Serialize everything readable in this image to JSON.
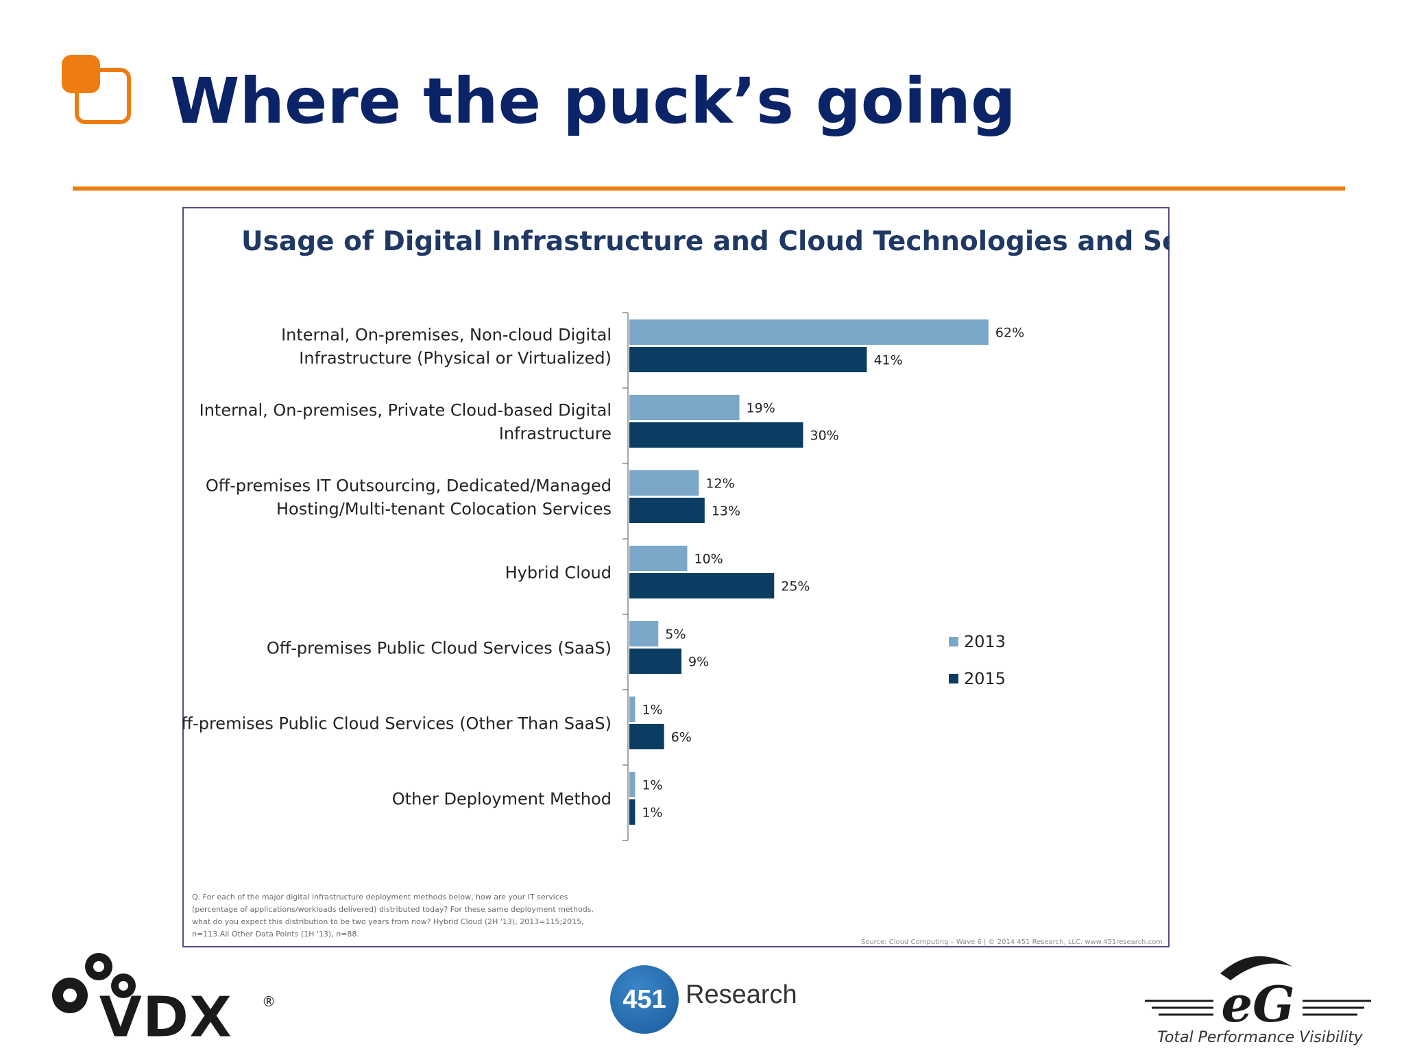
{
  "slide": {
    "title": "Where the puck’s going",
    "accent_color": "#ee7d11",
    "title_color": "#0a2467",
    "icon": "rounded-squares-icon"
  },
  "chart_data": {
    "type": "bar",
    "orientation": "horizontal",
    "title": "Usage of Digital Infrastructure and Cloud Technologies and Services",
    "categories": [
      [
        "Internal, On-premises, Non-cloud Digital",
        "Infrastructure (Physical or Virtualized)"
      ],
      [
        "Internal, On-premises, Private Cloud-based Digital",
        "Infrastructure"
      ],
      [
        "Off-premises IT Outsourcing, Dedicated/Managed",
        "Hosting/Multi-tenant Colocation Services"
      ],
      [
        "Hybrid Cloud"
      ],
      [
        "Off-premises Public Cloud Services (SaaS)"
      ],
      [
        "Off-premises Public Cloud Services (Other Than SaaS)"
      ],
      [
        "Other Deployment Method"
      ]
    ],
    "series": [
      {
        "name": "2013",
        "color": "#7ba7c9",
        "values": [
          62,
          19,
          12,
          10,
          5,
          1,
          1
        ],
        "labels": [
          "62%",
          "19%",
          "12%",
          "10%",
          "5%",
          "1%",
          "1%"
        ]
      },
      {
        "name": "2015",
        "color": "#0b3d63",
        "values": [
          41,
          30,
          13,
          25,
          9,
          6,
          1
        ],
        "labels": [
          "41%",
          "30%",
          "13%",
          "25%",
          "9%",
          "6%",
          "1%"
        ]
      }
    ],
    "xlim": [
      0,
      70
    ],
    "grid": false,
    "legend_position": "right",
    "note": [
      "Q. For each of the major digital infrastructure deployment methods below, how are your IT services",
      "(percentage of applications/workloads delivered) distributed today? For these same deployment methods,",
      "what do you expect this distribution to be two years from now? Hybrid Cloud (2H '13), 2013=115;2015,",
      "n=113.All Other Data Points (1H '13), n=88."
    ],
    "source": "Source: Cloud Computing – Wave 6 | © 2014 451 Research, LLC. www.451research.com"
  },
  "footer": {
    "vdx_text": "VDX",
    "vdx_mark": "®",
    "research_number": "451",
    "research_word": "Research",
    "eg_text": "eG",
    "eg_tagline": "Total Performance Visibility"
  }
}
